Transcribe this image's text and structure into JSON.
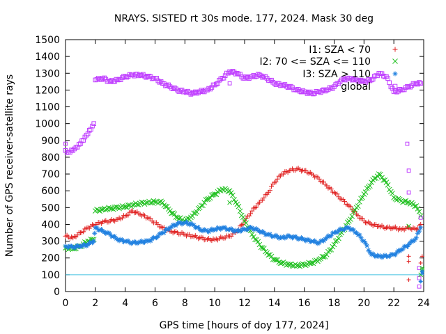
{
  "chart_data": {
    "type": "scatter",
    "title": "NRAYS. SISTED rt 30s mode. 177, 2024. Mask 30 deg",
    "xlabel": "GPS time [hours of doy 177, 2024]",
    "ylabel": "Number of GPS receiver-satellite rays",
    "xlim": [
      0,
      24
    ],
    "ylim": [
      0,
      1500
    ],
    "xticks": [
      0,
      2,
      4,
      6,
      8,
      10,
      12,
      14,
      16,
      18,
      20,
      22,
      24
    ],
    "yticks": [
      0,
      100,
      200,
      300,
      400,
      500,
      600,
      700,
      800,
      900,
      1000,
      1100,
      1200,
      1300,
      1400,
      1500
    ],
    "grid": false,
    "legend_position": "top-right",
    "reference_line": {
      "y": 100,
      "color": "#40c0e0"
    },
    "series": [
      {
        "name": "I1: SZA < 70",
        "marker": "+",
        "color": "#e02020",
        "x": [
          0,
          0.5,
          1,
          1.5,
          2,
          2.5,
          3,
          3.5,
          4,
          4.5,
          5,
          5.5,
          6,
          6.5,
          7,
          7.5,
          8,
          8.5,
          9,
          9.5,
          10,
          10.5,
          11,
          11.5,
          12,
          12.5,
          13,
          13.5,
          14,
          14.5,
          15,
          15.5,
          16,
          16.5,
          17,
          17.5,
          18,
          18.5,
          19,
          19.5,
          20,
          20.5,
          21,
          21.5,
          22,
          22.5,
          23,
          23.5,
          23.8
        ],
        "y": [
          330,
          320,
          350,
          380,
          400,
          415,
          420,
          430,
          450,
          480,
          460,
          440,
          410,
          380,
          360,
          350,
          340,
          330,
          320,
          310,
          310,
          320,
          330,
          360,
          420,
          480,
          530,
          580,
          650,
          700,
          720,
          730,
          720,
          700,
          670,
          630,
          590,
          550,
          510,
          460,
          420,
          400,
          390,
          380,
          380,
          370,
          380,
          370,
          400
        ]
      },
      {
        "name": "I2: 70 <= SZA <= 110",
        "marker": "x",
        "color": "#20c020",
        "x": [
          0,
          0.5,
          1,
          1.5,
          1.9,
          2,
          2.5,
          3,
          3.5,
          4,
          4.5,
          5,
          5.5,
          6,
          6.5,
          7,
          7.5,
          8,
          8.5,
          9,
          9.5,
          10,
          10.5,
          11,
          11.5,
          12,
          12.5,
          13,
          13.5,
          14,
          14.5,
          15,
          15.5,
          16,
          16.5,
          17,
          17.5,
          18,
          18.5,
          19,
          19.5,
          20,
          20.5,
          21,
          21.5,
          22,
          22.5,
          23,
          23.5,
          23.8
        ],
        "y": [
          260,
          255,
          270,
          300,
          310,
          480,
          490,
          495,
          500,
          505,
          515,
          525,
          530,
          535,
          530,
          480,
          440,
          420,
          450,
          500,
          550,
          580,
          610,
          600,
          520,
          420,
          340,
          280,
          230,
          190,
          170,
          160,
          155,
          160,
          170,
          190,
          220,
          280,
          350,
          420,
          500,
          580,
          650,
          700,
          650,
          560,
          540,
          530,
          510,
          450
        ]
      },
      {
        "name": "I3: SZA > 110",
        "marker": "*",
        "color": "#2080e0",
        "x": [
          0,
          0.5,
          1,
          1.5,
          1.9,
          2,
          2.5,
          3,
          3.5,
          4,
          4.5,
          5,
          5.5,
          6,
          6.5,
          7,
          7.5,
          8,
          8.5,
          9,
          9.5,
          10,
          10.5,
          11,
          11.5,
          12,
          12.5,
          13,
          13.5,
          14,
          14.5,
          15,
          15.5,
          16,
          16.5,
          17,
          17.5,
          18,
          18.5,
          19,
          19.5,
          20,
          20.5,
          21,
          21.5,
          22,
          22.5,
          23,
          23.5,
          23.8
        ],
        "y": [
          270,
          265,
          270,
          280,
          300,
          380,
          360,
          340,
          310,
          300,
          290,
          295,
          300,
          320,
          350,
          380,
          405,
          410,
          400,
          370,
          360,
          370,
          380,
          370,
          360,
          370,
          380,
          360,
          340,
          330,
          320,
          330,
          320,
          310,
          300,
          290,
          320,
          350,
          370,
          380,
          350,
          300,
          220,
          210,
          210,
          220,
          250,
          280,
          320,
          380
        ]
      },
      {
        "name": "global",
        "marker": "square",
        "color": "#c040ff",
        "x": [
          0,
          0.2,
          0.5,
          0.8,
          1,
          1.3,
          1.6,
          1.9,
          2,
          2.5,
          3,
          3.5,
          4,
          4.5,
          5,
          5.5,
          6,
          6.5,
          7,
          7.5,
          8,
          8.5,
          9,
          9.5,
          10,
          10.5,
          11,
          11.5,
          12,
          12.5,
          13,
          13.5,
          14,
          14.5,
          15,
          15.5,
          16,
          16.5,
          17,
          17.5,
          18,
          18.5,
          19,
          19.5,
          20,
          20.5,
          21,
          21.5,
          22,
          22.5,
          23,
          23.5,
          23.8
        ],
        "y": [
          840,
          830,
          840,
          860,
          880,
          920,
          960,
          1000,
          1260,
          1270,
          1250,
          1260,
          1280,
          1290,
          1290,
          1280,
          1270,
          1240,
          1220,
          1200,
          1190,
          1180,
          1190,
          1200,
          1230,
          1270,
          1310,
          1300,
          1270,
          1280,
          1290,
          1270,
          1240,
          1230,
          1220,
          1200,
          1190,
          1180,
          1190,
          1200,
          1220,
          1260,
          1270,
          1260,
          1250,
          1260,
          1300,
          1280,
          1190,
          1200,
          1220,
          1240,
          1240
        ]
      }
    ],
    "outliers": [
      {
        "series": "global",
        "points": [
          [
            0,
            880
          ],
          [
            11,
            1240
          ],
          [
            22.9,
            880
          ],
          [
            23,
            720
          ],
          [
            23,
            590
          ],
          [
            23.8,
            440
          ],
          [
            23.7,
            140
          ],
          [
            23.7,
            80
          ],
          [
            23.7,
            30
          ]
        ]
      },
      {
        "series": "I1: SZA < 70",
        "points": [
          [
            23,
            210
          ],
          [
            23,
            180
          ],
          [
            23,
            70
          ],
          [
            23.9,
            210
          ],
          [
            23.8,
            170
          ]
        ]
      },
      {
        "series": "I2: 70 <= SZA <= 110",
        "points": [
          [
            11,
            530
          ],
          [
            23,
            390
          ],
          [
            23.9,
            140
          ],
          [
            23.9,
            130
          ],
          [
            23.8,
            100
          ]
        ]
      },
      {
        "series": "I3: SZA > 110",
        "points": [
          [
            23.9,
            120
          ],
          [
            23.9,
            110
          ],
          [
            23.8,
            60
          ]
        ]
      }
    ]
  }
}
